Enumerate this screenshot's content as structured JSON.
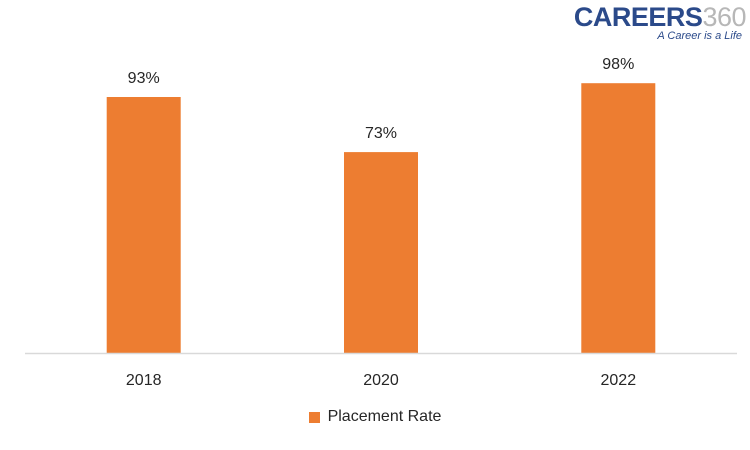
{
  "logo": {
    "word": "CAREERS",
    "number": "360",
    "tagline": "A Career is a Life"
  },
  "colors": {
    "bar": "#ed7d31",
    "axis": "#d9d9d9",
    "text": "#262626"
  },
  "chart_data": {
    "type": "bar",
    "categories": [
      "2018",
      "2020",
      "2022"
    ],
    "series": [
      {
        "name": "Placement Rate",
        "values": [
          93,
          73,
          98
        ],
        "labels": [
          "93%",
          "73%",
          "98%"
        ]
      }
    ],
    "ylim": [
      0,
      100
    ],
    "grid": false,
    "legend": "bottom"
  }
}
